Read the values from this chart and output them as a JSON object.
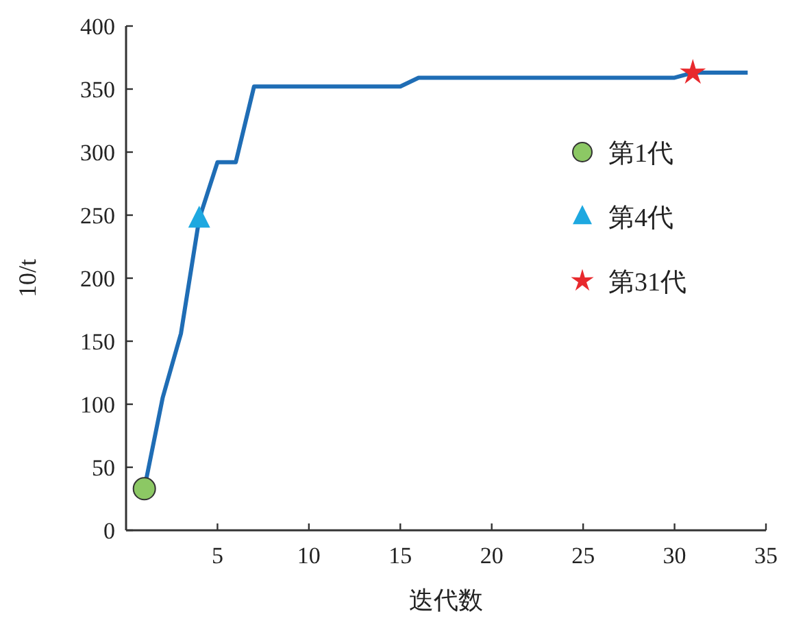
{
  "chart_data": {
    "type": "line",
    "xlabel": "迭代数",
    "ylabel": "10/t",
    "xlim": [
      0,
      35
    ],
    "ylim": [
      0,
      400
    ],
    "xticks": [
      5,
      10,
      15,
      20,
      25,
      30,
      35
    ],
    "yticks": [
      0,
      50,
      100,
      150,
      200,
      250,
      300,
      350,
      400
    ],
    "grid": false,
    "legend": "right",
    "series": [
      {
        "color": "#1f6db5",
        "x": [
          1,
          2,
          3,
          4,
          5,
          6,
          7,
          15,
          16,
          30,
          31,
          34
        ],
        "values": [
          33,
          105,
          156,
          247,
          292,
          292,
          352,
          352,
          359,
          359,
          363,
          363
        ]
      },
      {
        "type": "scatter",
        "name": "第1代",
        "marker": "circle",
        "color": "#8cc864",
        "x": [
          1
        ],
        "values": [
          33
        ]
      },
      {
        "type": "scatter",
        "name": "第4代",
        "marker": "triangle",
        "color": "#1ea8e0",
        "x": [
          4
        ],
        "values": [
          247
        ]
      },
      {
        "type": "scatter",
        "name": "第31代",
        "marker": "star",
        "color": "#e8292d",
        "x": [
          31
        ],
        "values": [
          363
        ]
      }
    ]
  }
}
